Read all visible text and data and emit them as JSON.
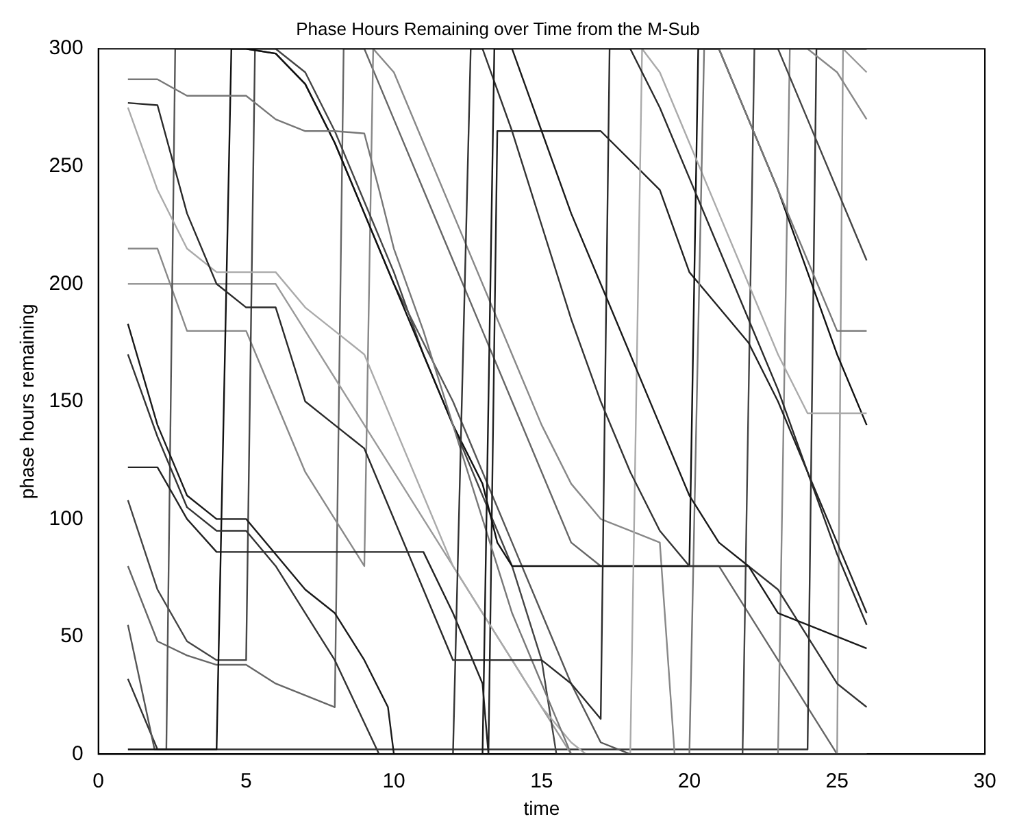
{
  "chart_data": {
    "type": "line",
    "title": "Phase Hours Remaining over Time from the M-Sub",
    "xlabel": "time",
    "ylabel": "phase hours remaining",
    "xlim": [
      0,
      30
    ],
    "xticks": [
      0,
      5,
      10,
      15,
      20,
      25,
      30
    ],
    "ylim": [
      0,
      300
    ],
    "yticks": [
      0,
      50,
      100,
      150,
      200,
      250,
      300
    ],
    "grid": false,
    "legend": false,
    "marker": "none",
    "line_style": "solid",
    "series": [
      {
        "color": "#1a1a1a",
        "x": [
          1,
          2,
          3,
          4,
          5,
          6,
          7,
          8,
          9,
          9.8,
          10,
          13,
          13.4,
          14,
          15,
          16,
          17,
          18,
          19,
          20,
          21,
          22,
          23,
          24,
          25,
          26
        ],
        "values": [
          183,
          140,
          110,
          100,
          100,
          85,
          70,
          60,
          40,
          20,
          0,
          0,
          300,
          300,
          265,
          230,
          200,
          170,
          140,
          110,
          90,
          80,
          60,
          55,
          50,
          45
        ]
      },
      {
        "color": "#333333",
        "x": [
          1,
          2,
          3,
          4,
          5,
          6,
          7,
          8,
          9.5,
          12,
          12.6,
          13,
          14,
          15,
          16,
          17,
          18,
          19,
          20,
          21,
          22,
          23,
          24,
          25,
          26
        ],
        "values": [
          170,
          135,
          105,
          95,
          95,
          80,
          60,
          40,
          0,
          0,
          300,
          300,
          265,
          225,
          185,
          150,
          120,
          95,
          80,
          80,
          80,
          70,
          50,
          30,
          20
        ]
      },
      {
        "color": "#2a2a2a",
        "x": [
          1,
          2,
          3,
          4,
          5,
          6,
          7,
          8,
          9,
          10,
          11,
          12,
          13,
          14,
          15,
          16,
          17,
          17.3,
          18,
          19,
          20,
          21,
          22,
          23,
          24,
          25,
          26
        ],
        "values": [
          277,
          276,
          230,
          200,
          190,
          190,
          150,
          140,
          130,
          100,
          70,
          40,
          40,
          40,
          40,
          30,
          15,
          300,
          300,
          275,
          245,
          215,
          185,
          155,
          120,
          85,
          55
        ]
      },
      {
        "color": "#777777",
        "x": [
          1,
          2,
          3,
          4,
          5,
          6,
          7,
          8,
          9,
          9.5,
          10,
          11,
          12,
          13,
          14,
          15,
          16,
          20,
          20.5,
          21,
          22,
          23,
          24,
          25,
          26
        ],
        "values": [
          287,
          287,
          280,
          280,
          280,
          270,
          265,
          265,
          264,
          240,
          215,
          180,
          140,
          100,
          60,
          30,
          0,
          0,
          300,
          300,
          270,
          240,
          210,
          180,
          180
        ]
      },
      {
        "color": "#aaaaaa",
        "x": [
          1,
          2,
          3,
          4,
          5,
          6,
          7,
          8,
          9,
          10,
          11,
          12,
          13,
          14,
          15,
          16,
          16.5,
          18,
          18.4,
          19,
          20,
          21,
          22,
          23,
          24,
          25,
          26
        ],
        "values": [
          275,
          240,
          215,
          205,
          205,
          205,
          190,
          180,
          170,
          140,
          110,
          80,
          60,
          40,
          20,
          5,
          0,
          0,
          300,
          290,
          260,
          230,
          200,
          170,
          145,
          145,
          145
        ]
      },
      {
        "color": "#111111",
        "x": [
          1,
          4,
          4.5,
          5,
          6,
          7,
          8,
          9,
          10,
          11,
          12,
          13,
          13.5,
          14,
          20,
          20.3,
          21,
          22,
          23,
          24,
          25,
          26
        ],
        "values": [
          2,
          2,
          300,
          300,
          298,
          285,
          260,
          230,
          200,
          170,
          140,
          115,
          90,
          80,
          80,
          300,
          300,
          270,
          240,
          205,
          170,
          140
        ]
      },
      {
        "color": "#222222",
        "x": [
          1,
          2,
          3,
          4,
          11,
          12,
          13,
          13.2,
          13.5,
          15,
          17,
          19,
          20,
          21,
          22,
          23,
          24,
          25,
          26
        ],
        "values": [
          122,
          122,
          100,
          86,
          86,
          60,
          30,
          0,
          265,
          265,
          265,
          240,
          205,
          190,
          175,
          150,
          120,
          90,
          60
        ]
      },
      {
        "color": "#555555",
        "x": [
          1,
          1.9,
          2.3,
          2.6,
          3,
          4,
          5,
          6,
          7,
          8,
          9,
          10,
          11,
          12,
          13,
          14,
          15,
          16,
          17,
          18,
          19,
          20,
          21,
          22,
          23,
          24,
          25,
          26
        ],
        "values": [
          55,
          2,
          2,
          300,
          300,
          300,
          300,
          298,
          285,
          260,
          230,
          200,
          175,
          150,
          120,
          90,
          60,
          30,
          5,
          0,
          0,
          0,
          0,
          0,
          0,
          0,
          0,
          0
        ]
      },
      {
        "color": "#444444",
        "x": [
          1,
          2,
          3,
          4,
          5,
          5.3,
          6,
          7,
          8,
          9,
          10,
          11,
          12,
          13,
          14,
          15,
          15.5,
          21.8,
          22.2,
          23,
          24,
          25,
          26
        ],
        "values": [
          108,
          70,
          48,
          40,
          40,
          300,
          300,
          290,
          265,
          235,
          205,
          170,
          140,
          110,
          80,
          40,
          0,
          0,
          300,
          300,
          270,
          240,
          210
        ]
      },
      {
        "color": "#888888",
        "x": [
          1,
          2,
          3,
          4,
          5,
          6,
          7,
          8,
          9,
          9.3,
          10,
          11,
          12,
          13,
          14,
          15,
          16,
          17,
          18,
          19,
          19.5,
          23,
          23.4,
          24,
          25,
          26
        ],
        "values": [
          215,
          215,
          180,
          180,
          180,
          150,
          120,
          100,
          80,
          300,
          290,
          260,
          230,
          200,
          170,
          140,
          115,
          100,
          95,
          90,
          0,
          0,
          300,
          300,
          290,
          270
        ]
      },
      {
        "color": "#999999",
        "x": [
          1,
          2,
          3,
          4,
          5,
          6,
          7,
          8,
          9,
          10,
          11,
          12,
          13,
          14,
          15,
          16,
          17,
          18,
          19,
          20,
          21,
          22,
          23,
          24,
          25,
          25.2,
          26
        ],
        "values": [
          200,
          200,
          200,
          200,
          200,
          200,
          180,
          160,
          140,
          120,
          100,
          80,
          60,
          40,
          20,
          0,
          0,
          0,
          0,
          0,
          0,
          0,
          0,
          0,
          0,
          300,
          290
        ]
      },
      {
        "color": "#333333",
        "x": [
          1,
          2,
          3,
          4,
          6,
          6.5,
          7,
          8,
          9,
          10,
          11,
          12,
          13,
          14,
          15,
          16,
          17,
          18,
          19,
          20,
          20.8,
          24,
          24.3,
          25,
          26
        ],
        "values": [
          32,
          2,
          2,
          2,
          2,
          2,
          2,
          2,
          2,
          2,
          2,
          2,
          2,
          2,
          2,
          2,
          2,
          2,
          2,
          2,
          2,
          2,
          300,
          300,
          300
        ]
      },
      {
        "color": "#666666",
        "x": [
          1,
          2,
          2.5,
          3,
          4,
          5,
          6,
          7,
          8,
          8.3,
          9,
          10,
          11,
          12,
          13,
          14,
          15,
          16,
          17,
          18,
          19,
          20,
          21,
          22,
          23,
          24,
          25,
          26
        ],
        "values": [
          80,
          48,
          45,
          42,
          38,
          38,
          30,
          25,
          20,
          300,
          300,
          270,
          240,
          210,
          180,
          150,
          120,
          90,
          80,
          80,
          80,
          80,
          80,
          60,
          40,
          20,
          0,
          0
        ]
      }
    ]
  }
}
